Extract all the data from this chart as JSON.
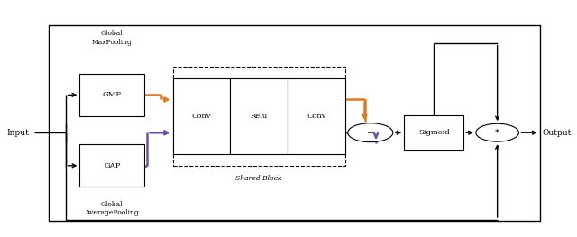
{
  "fig_width": 6.4,
  "fig_height": 2.63,
  "dpi": 100,
  "bg_color": "#ffffff",
  "colors": {
    "orange": "#E07820",
    "purple": "#7050A0",
    "black": "#1a1a1a"
  },
  "labels": {
    "input": "Input",
    "output": "Output",
    "gmp": "GMP",
    "gap": "GAP",
    "conv1": "Conv",
    "relu": "Relu",
    "conv2": "Conv",
    "sigmoid": "Sigmoid",
    "shared_block": "Shared Block",
    "global_maxpooling": "Global\nMaxPooling",
    "global_avgpooling": "Global\nAveragePooling",
    "plus": "+",
    "times": "*"
  }
}
